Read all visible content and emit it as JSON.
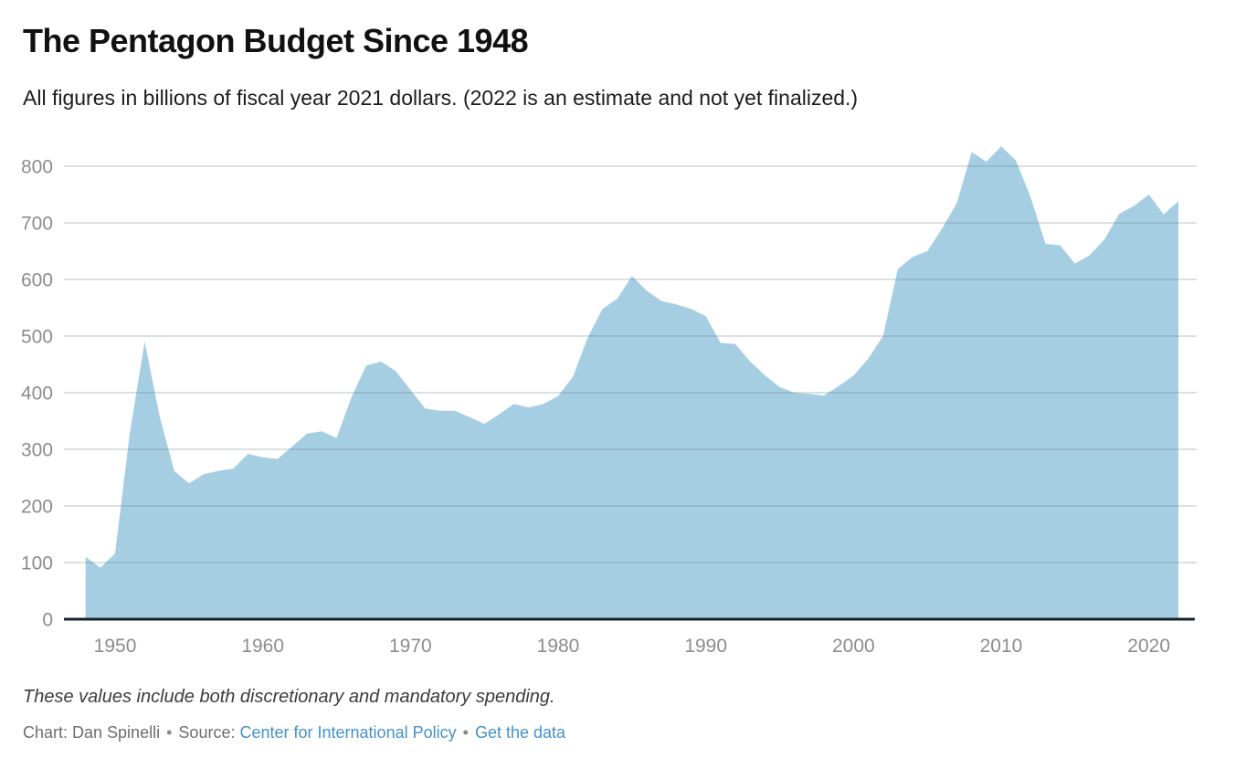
{
  "header": {
    "title": "The Pentagon Budget Since 1948",
    "subtitle": "All figures in billions of fiscal year 2021 dollars. (2022 is an estimate and not yet finalized.)"
  },
  "footer": {
    "note": "These values include both discretionary and mandatory spending.",
    "byline": "Chart: Dan Spinelli",
    "separator": "•",
    "source_label": "Source:",
    "source_link_label": "Center for International Policy",
    "get_data_label": "Get the data"
  },
  "colors": {
    "area": "#A6CEE3",
    "baseline": "#15222c",
    "grid": "#5a6b76",
    "tick_text": "#8c8c8c",
    "link": "#4592c6",
    "title_text": "#111111"
  },
  "chart_data": {
    "type": "area",
    "title": "The Pentagon Budget Since 1948",
    "subtitle": "All figures in billions of fiscal year 2021 dollars. (2022 is an estimate and not yet finalized.)",
    "series_name": "Pentagon budget (billions of fiscal year 2021 dollars)",
    "xlabel": "",
    "ylabel": "",
    "ylim": [
      0,
      800
    ],
    "grid": "horizontal",
    "legend": "none",
    "x_ticks": [
      1950,
      1960,
      1970,
      1980,
      1990,
      2000,
      2010,
      2020
    ],
    "y_ticks": [
      0,
      100,
      200,
      300,
      400,
      500,
      600,
      700,
      800
    ],
    "x": [
      1948,
      1949,
      1950,
      1951,
      1952,
      1953,
      1954,
      1955,
      1956,
      1957,
      1958,
      1959,
      1960,
      1961,
      1962,
      1963,
      1964,
      1965,
      1966,
      1967,
      1968,
      1969,
      1970,
      1971,
      1972,
      1973,
      1974,
      1975,
      1976,
      1977,
      1978,
      1979,
      1980,
      1981,
      1982,
      1983,
      1984,
      1985,
      1986,
      1987,
      1988,
      1989,
      1990,
      1991,
      1992,
      1993,
      1994,
      1995,
      1996,
      1997,
      1998,
      1999,
      2000,
      2001,
      2002,
      2003,
      2004,
      2005,
      2006,
      2007,
      2008,
      2009,
      2010,
      2011,
      2012,
      2013,
      2014,
      2015,
      2016,
      2017,
      2018,
      2019,
      2020,
      2021,
      2022
    ],
    "values": [
      110,
      91,
      116,
      330,
      490,
      360,
      262,
      240,
      256,
      262,
      266,
      292,
      286,
      283,
      305,
      328,
      332,
      320,
      392,
      448,
      455,
      438,
      405,
      372,
      368,
      368,
      357,
      345,
      362,
      380,
      374,
      380,
      394,
      428,
      497,
      548,
      566,
      606,
      580,
      562,
      556,
      548,
      535,
      488,
      486,
      455,
      431,
      410,
      400,
      398,
      395,
      412,
      430,
      460,
      500,
      618,
      640,
      650,
      690,
      735,
      825,
      808,
      835,
      810,
      745,
      663,
      660,
      628,
      643,
      671,
      716,
      730,
      750,
      715,
      738
    ]
  }
}
